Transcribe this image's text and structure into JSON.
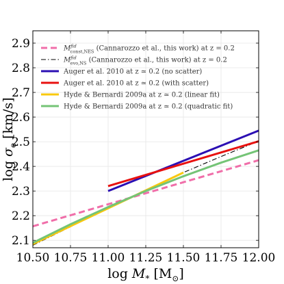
{
  "chart_data": {
    "type": "line",
    "xlabel_main": "log",
    "xlabel_sym": "M",
    "xlabel_sub": "*",
    "xlabel_unit": "[M",
    "xlabel_unit_sub": "⊙",
    "xlabel_unit_end": "]",
    "ylabel_main": "log",
    "ylabel_sym": "σ",
    "ylabel_sub": "e",
    "ylabel_unit": "[km/s]",
    "xlim": [
      10.5,
      12.0
    ],
    "ylim": [
      2.07,
      2.95
    ],
    "xticks": [
      10.5,
      10.75,
      11.0,
      11.25,
      11.5,
      11.75,
      12.0
    ],
    "xtick_labels": [
      "10.50",
      "10.75",
      "11.00",
      "11.25",
      "11.50",
      "11.75",
      "12.00"
    ],
    "yticks": [
      2.1,
      2.2,
      2.3,
      2.4,
      2.5,
      2.6,
      2.7,
      2.8,
      2.9
    ],
    "ytick_labels": [
      "2.1",
      "2.2",
      "2.3",
      "2.4",
      "2.5",
      "2.6",
      "2.7",
      "2.8",
      "2.9"
    ],
    "grid": true,
    "legend_position": "top-left",
    "series": [
      {
        "name_sym": "M",
        "name_sup": "fid",
        "name_sub": "const,NES",
        "name_rest": "(Cannarozzo et al., this work) at z = 0.2",
        "color": "#f06ea9",
        "style": "dashed",
        "x": [
          10.5,
          12.0
        ],
        "y": [
          2.157,
          2.425
        ]
      },
      {
        "name_sym": "M",
        "name_sup": "fid",
        "name_sub": "evo,NS",
        "name_rest": "(Cannarozzo et al., this work) at z = 0.2",
        "color": "#000000",
        "style": "dashdot",
        "x": [
          10.5,
          10.75,
          11.0,
          11.25,
          11.5,
          11.75,
          11.95
        ],
        "y": [
          2.08,
          2.155,
          2.23,
          2.305,
          2.375,
          2.44,
          2.49
        ]
      },
      {
        "name": "Auger et al. 2010 at z ≃ 0.2 (no scatter)",
        "color": "#2b0fb3",
        "style": "solid",
        "x": [
          11.0,
          12.0
        ],
        "y": [
          2.3,
          2.545
        ]
      },
      {
        "name": "Auger et al. 2010 at z ≃ 0.2 (with scatter)",
        "color": "#e8110f",
        "style": "solid",
        "x": [
          11.0,
          12.0
        ],
        "y": [
          2.32,
          2.502
        ]
      },
      {
        "name": "Hyde & Bernardi 2009a at z ≃ 0.2 (linear fit)",
        "color": "#f9c80e",
        "style": "solid",
        "x": [
          10.5,
          11.5
        ],
        "y": [
          2.085,
          2.375
        ]
      },
      {
        "name": "Hyde & Bernardi 2009a at z ≃ 0.2 (quadratic fit)",
        "color": "#74c476",
        "style": "solid",
        "x": [
          10.5,
          10.75,
          11.0,
          11.25,
          11.5,
          11.75,
          12.0
        ],
        "y": [
          2.09,
          2.165,
          2.235,
          2.3,
          2.36,
          2.415,
          2.465
        ]
      }
    ]
  }
}
